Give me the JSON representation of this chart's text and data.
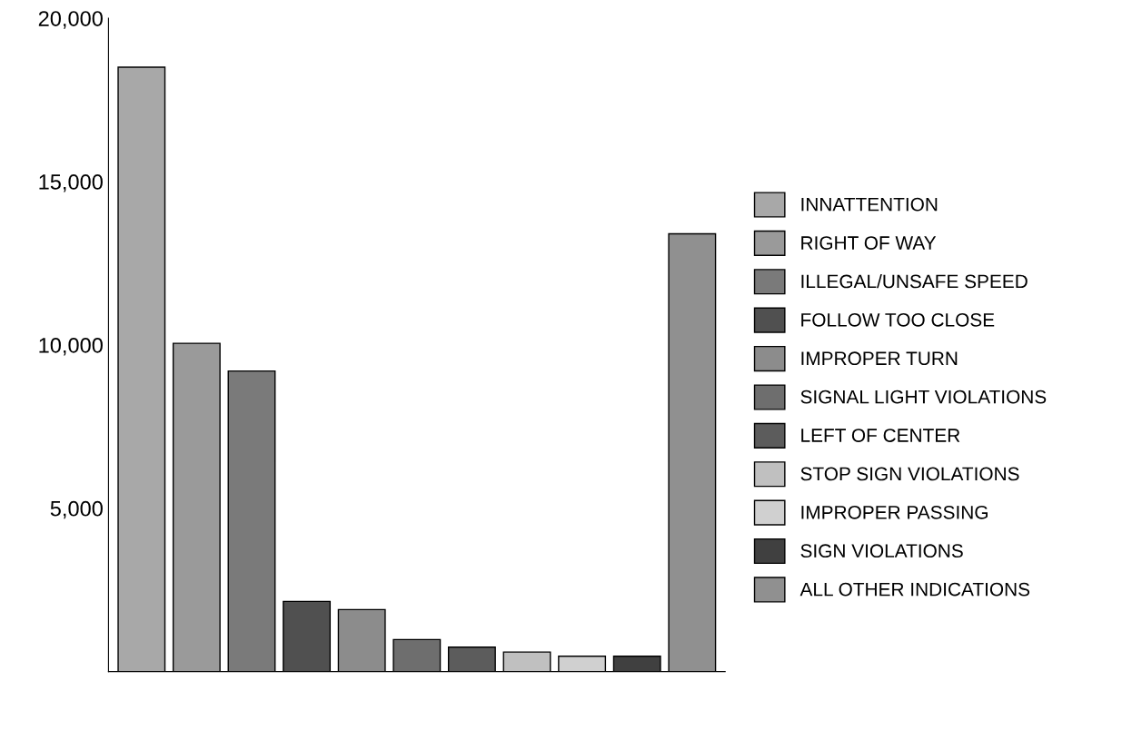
{
  "chart_data": {
    "type": "bar",
    "categories": [
      null,
      null,
      null,
      null,
      null,
      null,
      null,
      null,
      null,
      null,
      null
    ],
    "series": [
      {
        "name": "INNATTENTION",
        "color": "#a8a8a8",
        "values": [
          18500,
          null,
          null,
          null,
          null,
          null,
          null,
          null,
          null,
          null,
          null
        ]
      },
      {
        "name": "RIGHT OF WAY",
        "color": "#9a9a9a",
        "values": [
          null,
          10050,
          null,
          null,
          null,
          null,
          null,
          null,
          null,
          null,
          null
        ]
      },
      {
        "name": "ILLEGAL/UNSAFE SPEED",
        "color": "#7a7a7a",
        "values": [
          null,
          null,
          9200,
          null,
          null,
          null,
          null,
          null,
          null,
          null,
          null
        ]
      },
      {
        "name": "FOLLOW TOO CLOSE",
        "color": "#505050",
        "values": [
          null,
          null,
          null,
          2150,
          null,
          null,
          null,
          null,
          null,
          null,
          null
        ]
      },
      {
        "name": "IMPROPER TURN",
        "color": "#8c8c8c",
        "values": [
          null,
          null,
          null,
          null,
          1900,
          null,
          null,
          null,
          null,
          null,
          null
        ]
      },
      {
        "name": "SIGNAL LIGHT VIOLATIONS",
        "color": "#6e6e6e",
        "values": [
          null,
          null,
          null,
          null,
          null,
          980,
          null,
          null,
          null,
          null,
          null
        ]
      },
      {
        "name": "LEFT OF CENTER",
        "color": "#5c5c5c",
        "values": [
          null,
          null,
          null,
          null,
          null,
          null,
          750,
          null,
          null,
          null,
          null
        ]
      },
      {
        "name": "STOP SIGN VIOLATIONS",
        "color": "#c0c0c0",
        "values": [
          null,
          null,
          null,
          null,
          null,
          null,
          null,
          600,
          null,
          null,
          null
        ]
      },
      {
        "name": "IMPROPER PASSING",
        "color": "#d0d0d0",
        "values": [
          null,
          null,
          null,
          null,
          null,
          null,
          null,
          null,
          470,
          null,
          null
        ]
      },
      {
        "name": "SIGN VIOLATIONS",
        "color": "#404040",
        "values": [
          null,
          null,
          null,
          null,
          null,
          null,
          null,
          null,
          null,
          470,
          null
        ]
      },
      {
        "name": "ALL OTHER INDICATIONS",
        "color": "#909090",
        "values": [
          null,
          null,
          null,
          null,
          null,
          null,
          null,
          null,
          null,
          null,
          13400
        ]
      }
    ],
    "ylim": [
      0,
      20000
    ],
    "yticks": [
      {
        "value": 5000,
        "label": "5,000"
      },
      {
        "value": 10000,
        "label": "10,000"
      },
      {
        "value": 15000,
        "label": "15,000"
      },
      {
        "value": 20000,
        "label": "20,000"
      }
    ],
    "grid": false,
    "legend": "right"
  }
}
